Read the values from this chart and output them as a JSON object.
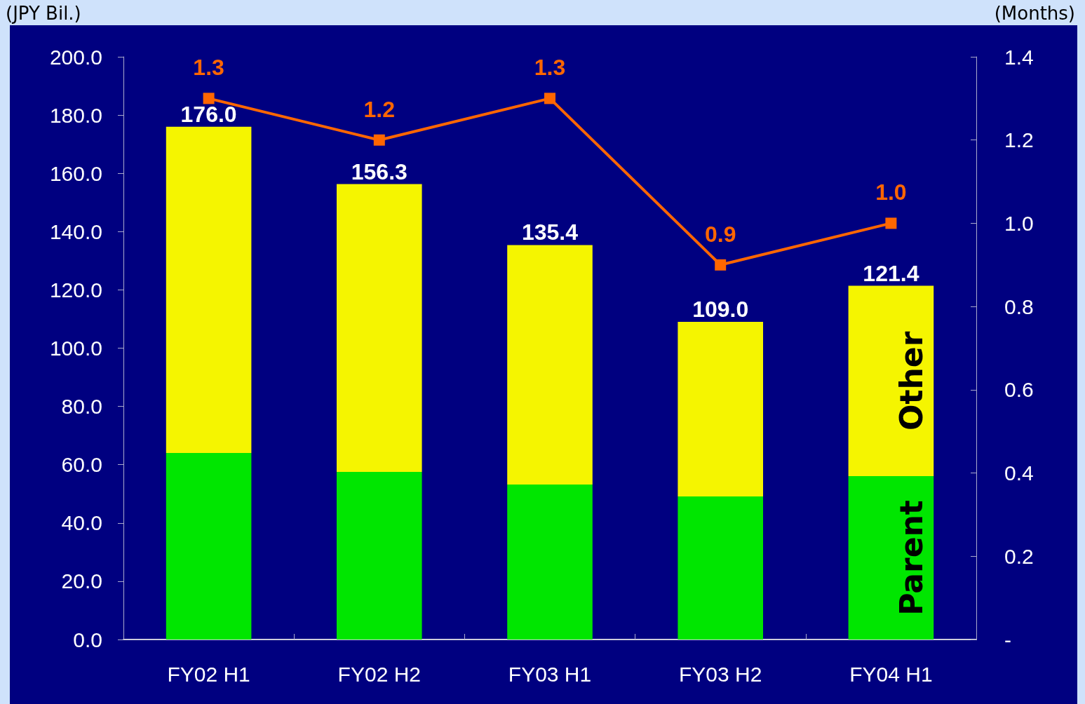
{
  "chart_data": {
    "type": "bar",
    "stacked": true,
    "ylabel": "(JPY Bil.)",
    "y2label": "(Months)",
    "categories": [
      "FY02 H1",
      "FY02 H2",
      "FY03 H1",
      "FY03 H2",
      "FY04 H1"
    ],
    "series": [
      {
        "name": "Parent",
        "color": "#00e600",
        "values": [
          64.0,
          57.5,
          53.2,
          49.1,
          56.1
        ]
      },
      {
        "name": "Other",
        "color": "#f5f500",
        "values": [
          112.0,
          98.8,
          82.2,
          59.9,
          65.3
        ]
      },
      {
        "type": "line",
        "axis": "y2",
        "color": "#ff6600",
        "marker": "square",
        "values": [
          1.3,
          1.2,
          1.3,
          0.9,
          1.0
        ],
        "value_labels": [
          "1.3",
          "1.2",
          "1.3",
          "0.9",
          "1.0"
        ]
      }
    ],
    "totals": [
      "176.0",
      "156.3",
      "135.4",
      "109.0",
      "121.4"
    ],
    "ylim": [
      0,
      200
    ],
    "yticks": [
      {
        "value": 0,
        "label": "0.0"
      },
      {
        "value": 20,
        "label": "20.0"
      },
      {
        "value": 40,
        "label": "40.0"
      },
      {
        "value": 60,
        "label": "60.0"
      },
      {
        "value": 80,
        "label": "80.0"
      },
      {
        "value": 100,
        "label": "100.0"
      },
      {
        "value": 120,
        "label": "120.0"
      },
      {
        "value": 140,
        "label": "140.0"
      },
      {
        "value": 160,
        "label": "160.0"
      },
      {
        "value": 180,
        "label": "180.0"
      },
      {
        "value": 200,
        "label": "200.0"
      }
    ],
    "y2lim": [
      0,
      1.4
    ],
    "y2ticks": [
      {
        "value": 0,
        "label": "-"
      },
      0.2,
      0.4,
      0.6,
      0.8,
      {
        "value": 1,
        "label": "1.0"
      },
      1.2,
      1.4
    ],
    "grid": false,
    "legend": false
  }
}
